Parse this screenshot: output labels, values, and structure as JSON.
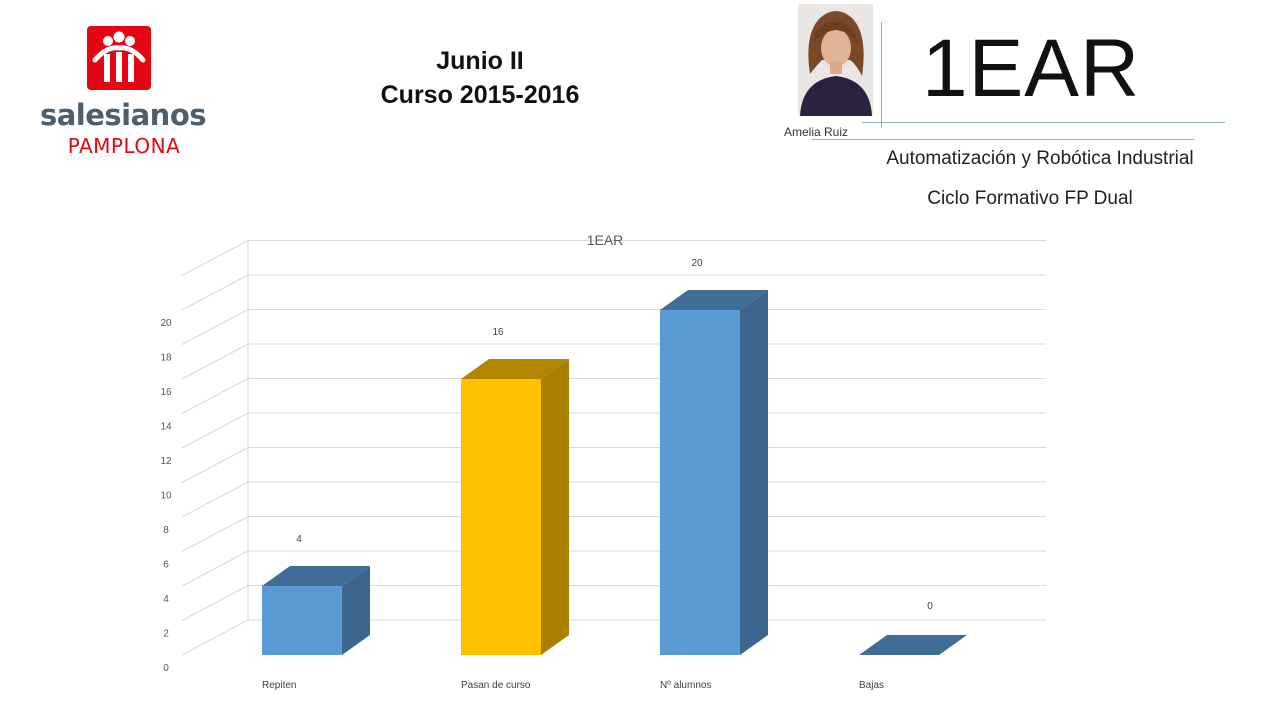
{
  "header": {
    "logo": {
      "brand": "salesianos",
      "city": "PAMPLONA"
    },
    "title_line1": "Junio II",
    "title_line2": "Curso 2015-2016",
    "teacher_name": "Amelia Ruiz",
    "group_code": "1EAR",
    "subject": "Automatización y Robótica Industrial",
    "cycle": "Ciclo Formativo FP Dual"
  },
  "colors": {
    "logo_red": "#e30613",
    "bar_blue": "#5b9bd5",
    "bar_gold": "#ffc000",
    "grid": "#d9d9d9"
  },
  "chart_data": {
    "type": "bar",
    "title": "1EAR",
    "categories": [
      "Repiten",
      "Pasan de curso",
      "Nº alumnos",
      "Bajas"
    ],
    "values": [
      4,
      16,
      20,
      0
    ],
    "data_labels": [
      "4",
      "16",
      "20",
      "0"
    ],
    "bar_colors": [
      "#5b9bd5",
      "#ffc000",
      "#5b9bd5",
      "#5b9bd5"
    ],
    "ylim": [
      0,
      22
    ],
    "y_ticks": [
      0,
      2,
      4,
      6,
      8,
      10,
      12,
      14,
      16,
      18,
      20
    ],
    "grid": true,
    "style": "3d-column"
  }
}
